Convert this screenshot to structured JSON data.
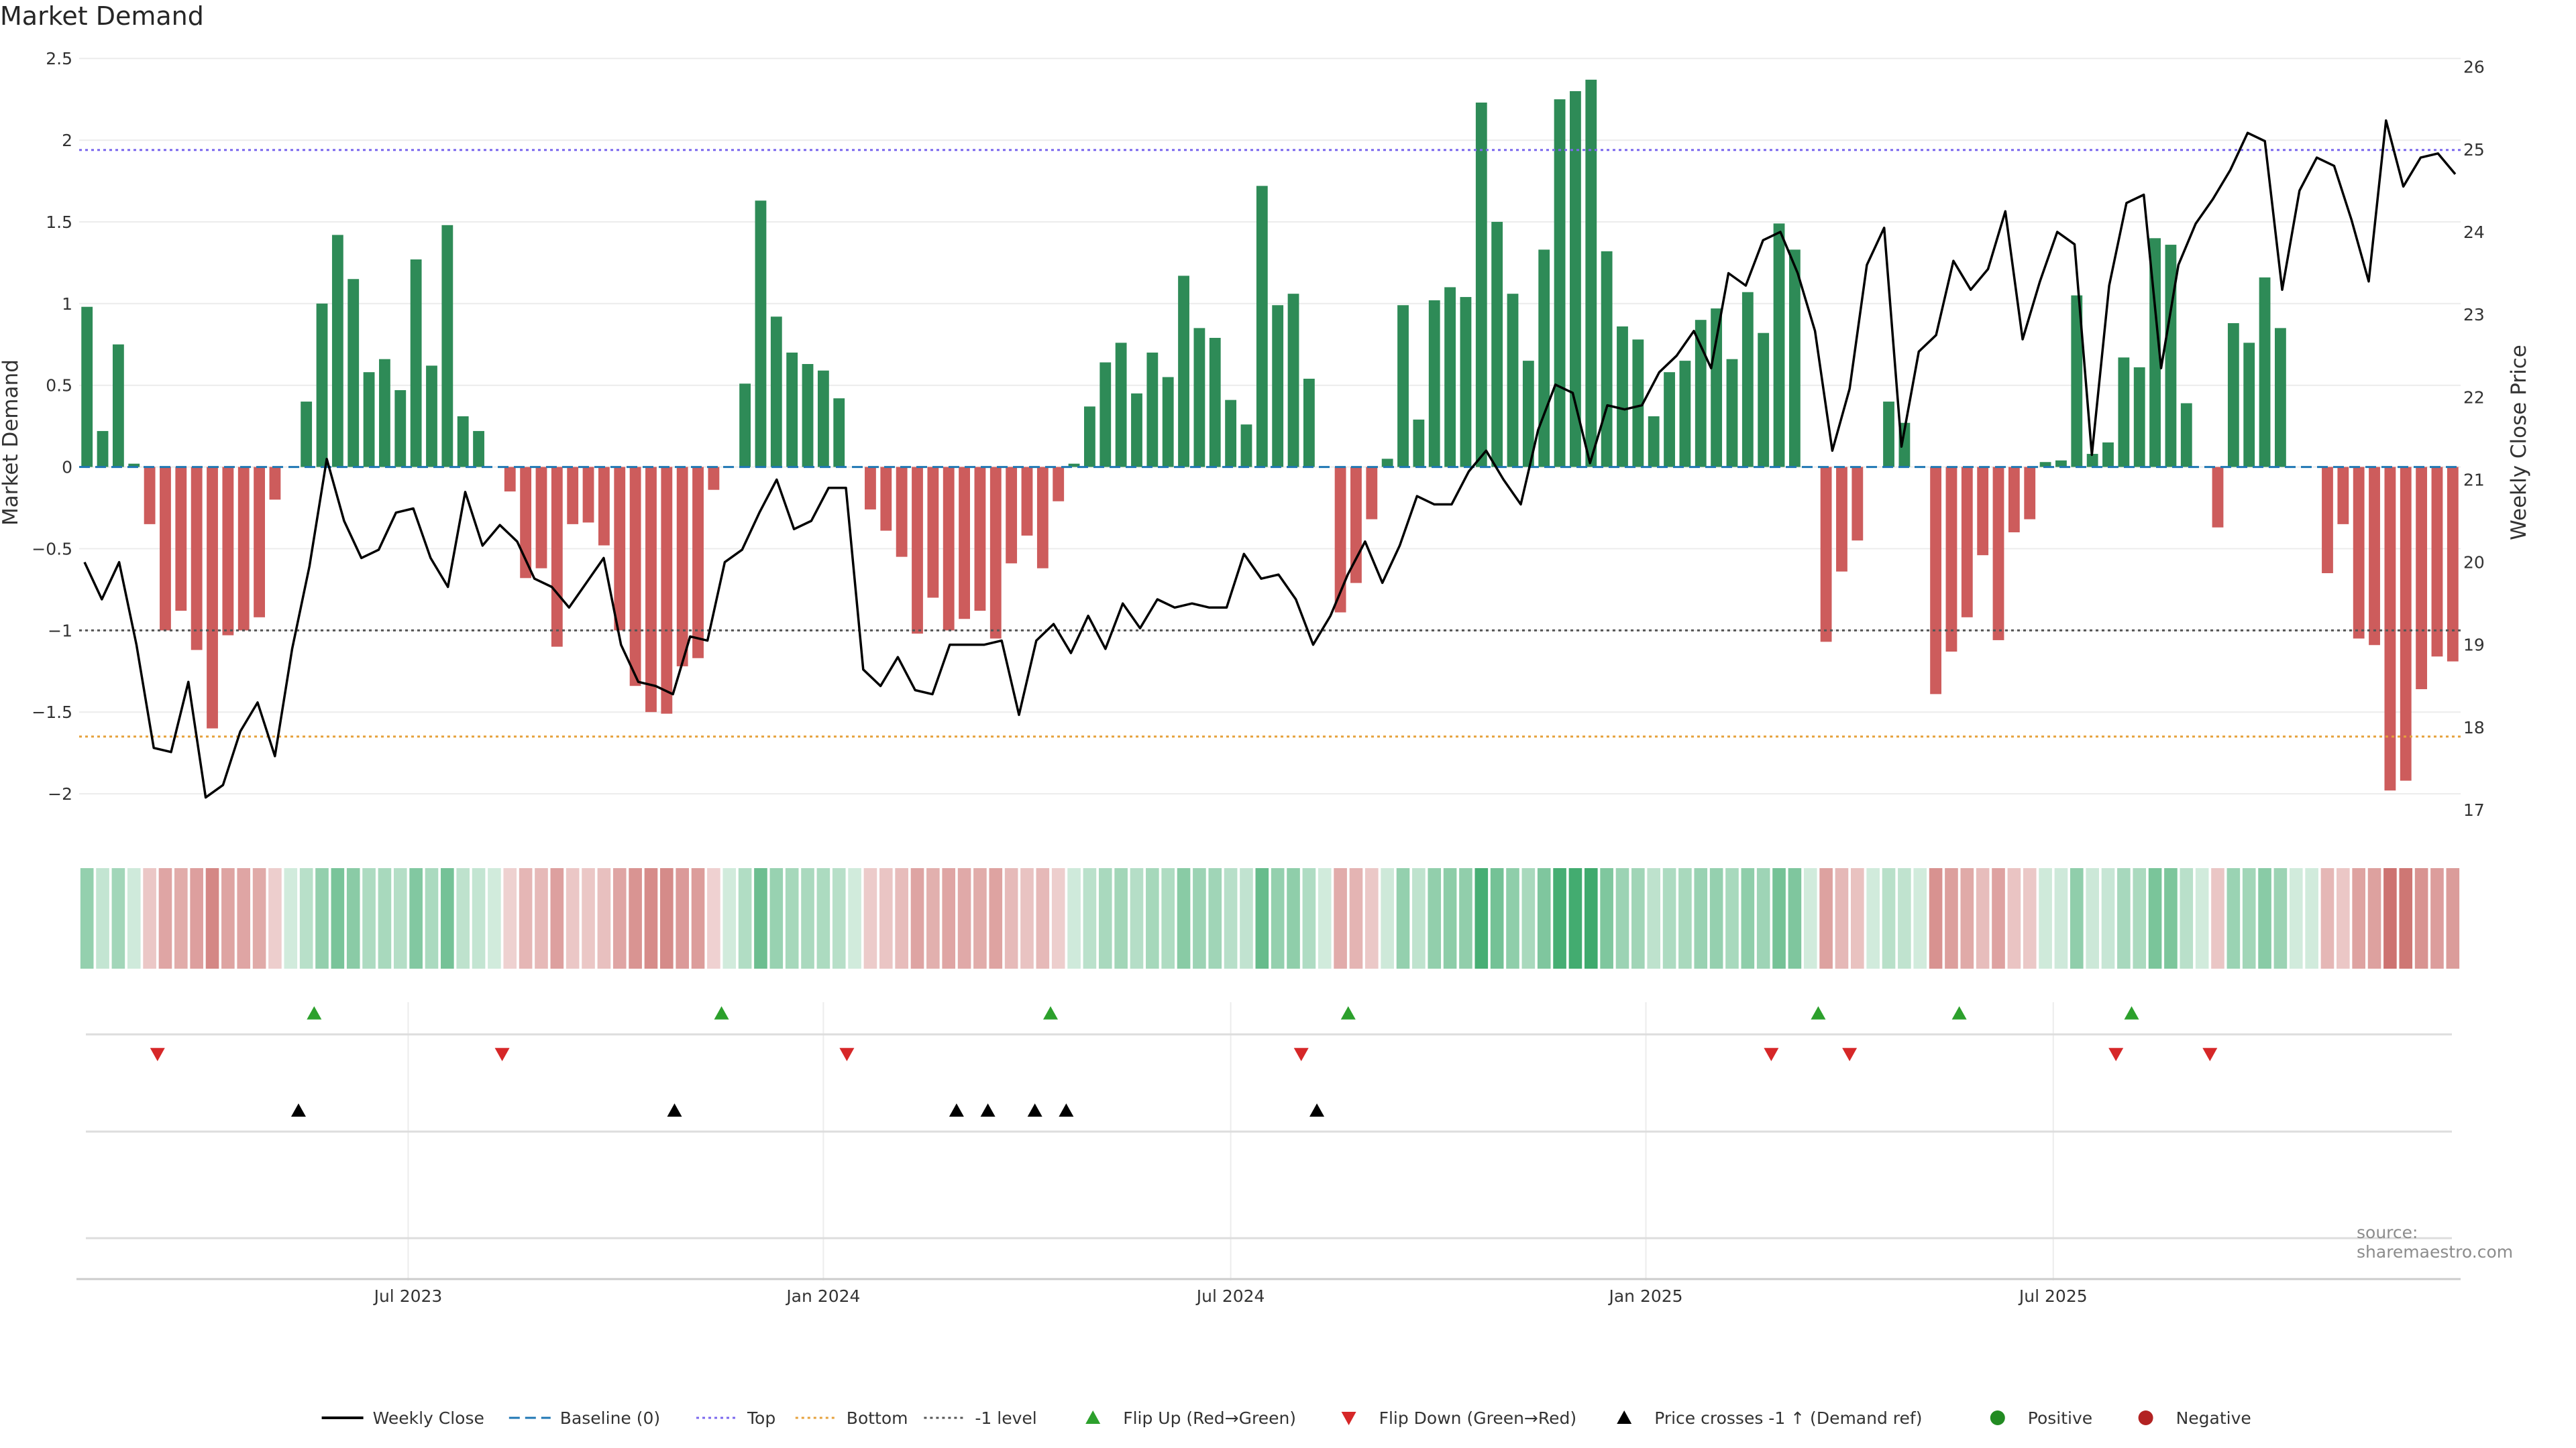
{
  "title": "Market Demand",
  "source": "source: sharemaestro.com",
  "colors": {
    "positive": "#2e8b57",
    "negative": "#cd5c5c",
    "price": "#000000",
    "baseline": "#1f77b4",
    "top": "#7b68ee",
    "bottom": "#e6a23c",
    "minus1": "#555555",
    "flip_up": "#2ca02c",
    "flip_down": "#d62728",
    "cross": "#000000"
  },
  "chart_data": {
    "type": "bar",
    "title": "Market Demand",
    "ylabel": "Market Demand",
    "y2label": "Weekly Close Price",
    "ylim": [
      -2.25,
      2.55
    ],
    "y2lim": [
      16.7,
      26.2
    ],
    "yticks": [
      2.5,
      2,
      1.5,
      1,
      0.5,
      0,
      -0.5,
      -1,
      -1.5,
      -2
    ],
    "ytick_labels": [
      "2.5",
      "2",
      "1.5",
      "1",
      "0.5",
      "0",
      "−0.5",
      "−1",
      "−1.5",
      "−2"
    ],
    "y2ticks": [
      26,
      25,
      24,
      23,
      22,
      21,
      20,
      19,
      18,
      17
    ],
    "xticks": [
      {
        "index": 20.5,
        "label": "Jul 2023"
      },
      {
        "index": 47,
        "label": "Jan 2024"
      },
      {
        "index": 73,
        "label": "Jul 2024"
      },
      {
        "index": 99.5,
        "label": "Jan 2025"
      },
      {
        "index": 125.5,
        "label": "Jul 2025"
      }
    ],
    "reference_lines": {
      "baseline": 0,
      "top": 1.94,
      "bottom": -1.65,
      "minus_one": -1.0
    },
    "demand": [
      0.98,
      0.22,
      0.75,
      0.02,
      -0.35,
      -1.0,
      -0.88,
      -1.12,
      -1.6,
      -1.03,
      -1.0,
      -0.92,
      -0.2,
      0.0,
      0.4,
      1.0,
      1.42,
      1.15,
      0.58,
      0.66,
      0.47,
      1.27,
      0.62,
      1.48,
      0.31,
      0.22,
      0.0,
      -0.15,
      -0.68,
      -0.62,
      -1.1,
      -0.35,
      -0.34,
      -0.48,
      -1.0,
      -1.34,
      -1.5,
      -1.51,
      -1.22,
      -1.17,
      -0.14,
      0.0,
      0.51,
      1.63,
      0.92,
      0.7,
      0.63,
      0.59,
      0.42,
      0.0,
      -0.26,
      -0.39,
      -0.55,
      -1.02,
      -0.8,
      -1.0,
      -0.93,
      -0.88,
      -1.05,
      -0.59,
      -0.42,
      -0.62,
      -0.21,
      0.02,
      0.37,
      0.64,
      0.76,
      0.45,
      0.7,
      0.55,
      1.17,
      0.85,
      0.79,
      0.41,
      0.26,
      1.72,
      0.99,
      1.06,
      0.54,
      0.0,
      -0.89,
      -0.71,
      -0.32,
      0.05,
      0.99,
      0.29,
      1.02,
      1.1,
      1.04,
      2.23,
      1.5,
      1.06,
      0.65,
      1.33,
      2.25,
      2.3,
      2.37,
      1.32,
      0.86,
      0.78,
      0.31,
      0.58,
      0.65,
      0.9,
      0.97,
      0.66,
      1.07,
      0.82,
      1.49,
      1.33,
      0.0,
      -1.07,
      -0.64,
      -0.45,
      0.0,
      0.4,
      0.27,
      0.0,
      -1.39,
      -1.13,
      -0.92,
      -0.54,
      -1.06,
      -0.4,
      -0.32,
      0.03,
      0.04,
      1.05,
      0.08,
      0.15,
      0.67,
      0.61,
      1.4,
      1.36,
      0.39,
      0.0,
      -0.37,
      0.88,
      0.76,
      1.16,
      0.85,
      0.0,
      0.0,
      -0.65,
      -0.35,
      -1.05,
      -1.09,
      -1.98,
      -1.92,
      -1.36,
      -1.16,
      -1.19
    ],
    "price": [
      20.0,
      19.55,
      20.0,
      19.0,
      17.75,
      17.7,
      18.55,
      17.15,
      17.3,
      17.95,
      18.3,
      17.65,
      18.95,
      19.95,
      21.25,
      20.5,
      20.05,
      20.15,
      20.6,
      20.65,
      20.05,
      19.7,
      20.85,
      20.2,
      20.45,
      20.25,
      19.8,
      19.7,
      19.45,
      19.75,
      20.05,
      19.0,
      18.55,
      18.5,
      18.4,
      19.1,
      19.05,
      20.0,
      20.15,
      20.6,
      21.0,
      20.4,
      20.5,
      20.9,
      20.9,
      18.7,
      18.5,
      18.85,
      18.45,
      18.4,
      19.0,
      19.0,
      19.0,
      19.05,
      18.15,
      19.05,
      19.25,
      18.9,
      19.35,
      18.95,
      19.5,
      19.2,
      19.55,
      19.45,
      19.5,
      19.45,
      19.45,
      20.1,
      19.8,
      19.85,
      19.55,
      19.0,
      19.35,
      19.85,
      20.25,
      19.75,
      20.2,
      20.8,
      20.7,
      20.7,
      21.1,
      21.35,
      21.0,
      20.7,
      21.6,
      22.15,
      22.05,
      21.2,
      21.9,
      21.85,
      21.9,
      22.3,
      22.5,
      22.8,
      22.35,
      23.5,
      23.35,
      23.9,
      24.0,
      23.5,
      22.8,
      21.35,
      22.1,
      23.6,
      24.05,
      21.4,
      22.55,
      22.75,
      23.65,
      23.3,
      23.55,
      24.25,
      22.7,
      23.4,
      24.0,
      23.85,
      21.3,
      23.35,
      24.35,
      24.45,
      22.35,
      23.6,
      24.1,
      24.4,
      24.75,
      25.2,
      25.1,
      23.3,
      24.5,
      24.9,
      24.8,
      24.15,
      23.4,
      25.35,
      24.55,
      24.9,
      24.95,
      24.7
    ],
    "price_note": "price series sampled across same weekly span",
    "flip_up_weeks": [
      14.5,
      40.5,
      61.5,
      80.5,
      110.5,
      119.5,
      130.5
    ],
    "flip_down_weeks": [
      4.5,
      26.5,
      48.5,
      77.5,
      107.5,
      112.5,
      129.5,
      135.5
    ],
    "price_cross_weeks": [
      13.5,
      37.5,
      55.5,
      57.5,
      60.5,
      62.5,
      78.5
    ]
  },
  "legend": {
    "items": [
      {
        "label": "Weekly Close",
        "kind": "line",
        "color": "#000000"
      },
      {
        "label": "Baseline (0)",
        "kind": "dash",
        "color": "#1f77b4"
      },
      {
        "label": "Top",
        "kind": "dot",
        "color": "#7b68ee"
      },
      {
        "label": "Bottom",
        "kind": "dot",
        "color": "#e6a23c"
      },
      {
        "label": "-1 level",
        "kind": "dot",
        "color": "#555555"
      },
      {
        "label": "Flip Up (Red→Green)",
        "kind": "tri-up",
        "color": "#2ca02c"
      },
      {
        "label": "Flip Down (Green→Red)",
        "kind": "tri-down",
        "color": "#d62728"
      },
      {
        "label": "Price crosses -1 ↑ (Demand ref)",
        "kind": "tri-up",
        "color": "#000000"
      },
      {
        "label": "Positive",
        "kind": "circle",
        "color": "#228b22"
      },
      {
        "label": "Negative",
        "kind": "circle",
        "color": "#b22222"
      }
    ]
  }
}
